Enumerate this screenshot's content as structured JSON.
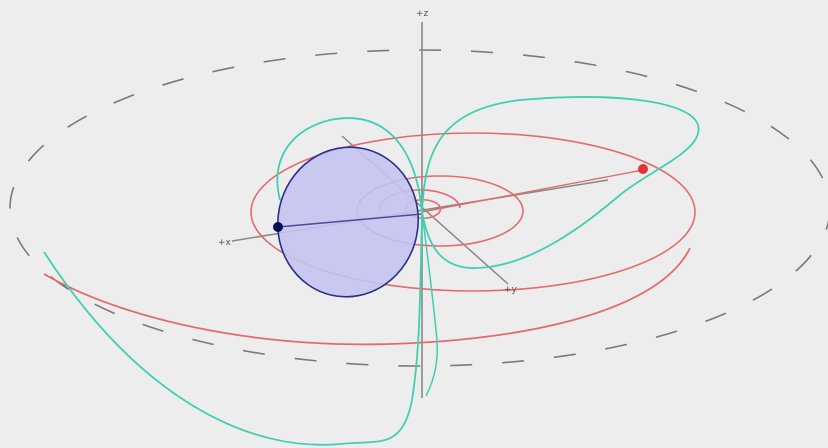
{
  "axes": {
    "z_label": "+z",
    "x_label": "+x",
    "y_label": "+y"
  },
  "colors": {
    "background": "#ededed",
    "axis": "#888888",
    "dashed_orbit": "#7a7a7a",
    "spiral": "#e36b6b",
    "teal_curve": "#3fcfb1",
    "disk_fill": "#c3c3f0",
    "disk_stroke": "#2c2f8a",
    "blue_point": "#0a0a5a",
    "red_point": "#e23232"
  }
}
